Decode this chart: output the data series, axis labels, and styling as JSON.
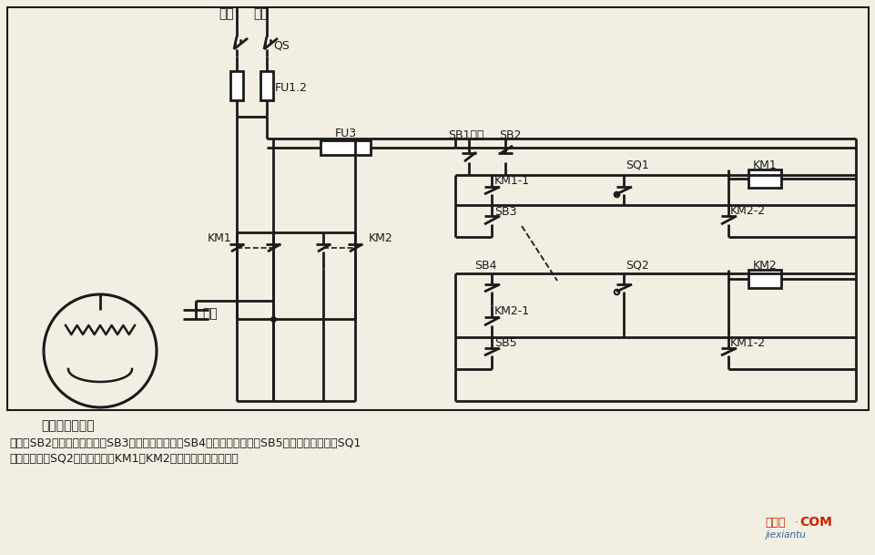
{
  "bg_color": "#f2efe2",
  "lc": "#1a1a1a",
  "desc1": "说明：SB2为上升启动按钮，SB3为上升点动按钮，SB4为下降启动按钮，SB5为下降点动按钮；SQ1",
  "desc2": "为最高限位，SQ2为最低限位。KM1、KM2可用中间继电器代替。",
  "motor_label": "单相电容电动机",
  "cap_label": "电容",
  "wm1": "接线图",
  "wm2": "jiexiantu",
  "wm3": "COM"
}
